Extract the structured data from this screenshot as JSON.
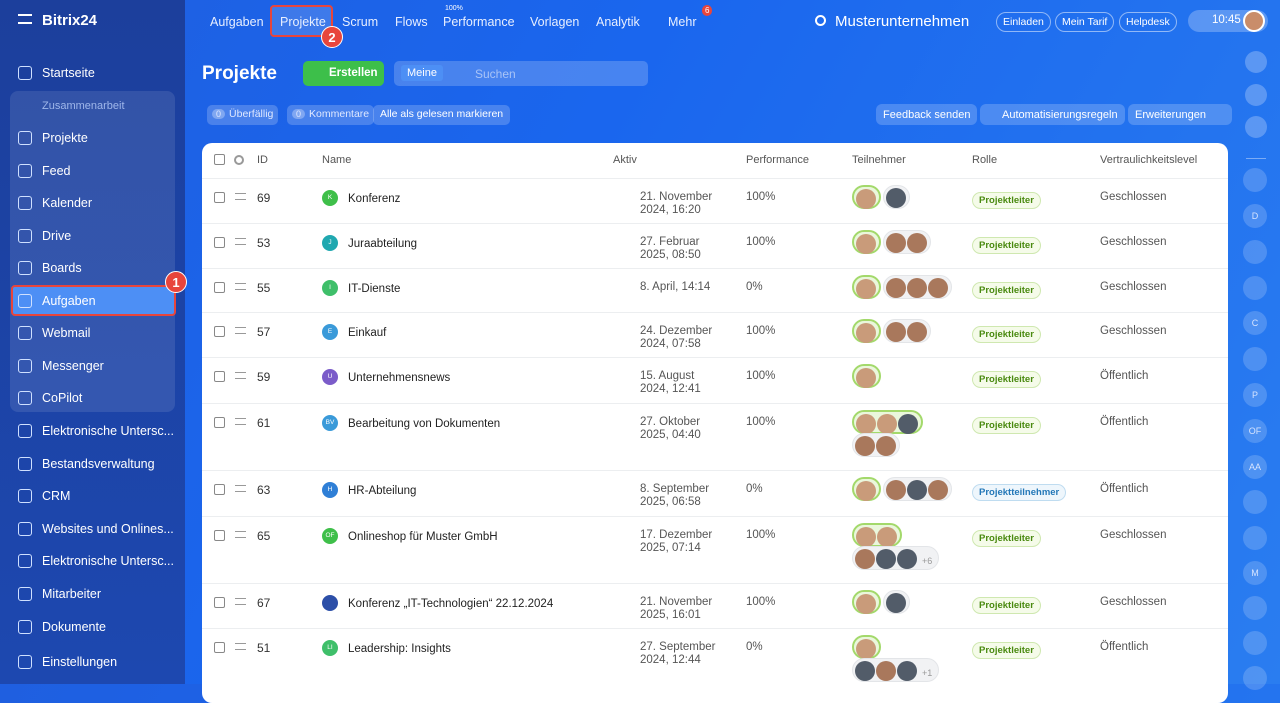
{
  "sidebar": {
    "logo": "Bitrix24",
    "items": [
      "Startseite"
    ],
    "group": {
      "title": "Zusammenarbeit",
      "items": [
        "Projekte",
        "Feed",
        "Kalender",
        "Drive",
        "Boards",
        "Aufgaben",
        "Webmail",
        "Messenger",
        "CoPilot"
      ]
    },
    "more_items": [
      "Elektronische Untersc...",
      "Bestandsverwaltung",
      "CRM",
      "Websites und Onlines...",
      "Elektronische Untersc...",
      "Mitarbeiter",
      "Dokumente",
      "Einstellungen"
    ]
  },
  "callouts": [
    "1",
    "2"
  ],
  "topnav": {
    "items": [
      "Aufgaben",
      "Projekte",
      "Scrum",
      "Flows",
      "Performance",
      "Vorlagen",
      "Analytik",
      "Mehr"
    ],
    "performance_badge": "100%",
    "mehr_badge": "6",
    "company": "Musterunternehmen",
    "buttons": [
      "Einladen",
      "Mein Tarif",
      "Helpdesk"
    ],
    "time": "10:45"
  },
  "header": {
    "title": "Projekte",
    "create": "Erstellen",
    "filter_tag": "Meine",
    "search_placeholder": "Suchen"
  },
  "toolbar": {
    "counters": [
      {
        "count": "0",
        "label": "Überfällig"
      },
      {
        "count": "0",
        "label": "Kommentare"
      }
    ],
    "mark_read": "Alle als gelesen markieren",
    "buttons": [
      "Feedback senden",
      "Automatisierungsregeln",
      "Erweiterungen"
    ]
  },
  "rail": {
    "letters": [
      "D",
      "C",
      "P",
      "OF",
      "AA",
      "M"
    ]
  },
  "table": {
    "columns": [
      "ID",
      "Name",
      "Aktiv",
      "Performance",
      "Teilnehmer",
      "Rolle",
      "Vertraulichkeitslevel"
    ],
    "rows": [
      {
        "id": "69",
        "icon": "K",
        "icon_color": "#3fbf4a",
        "name": "Konferenz",
        "aktiv": [
          "21. November",
          "2024, 16:20"
        ],
        "performance": "100%",
        "role": "Projektleiter",
        "level": "Geschlossen"
      },
      {
        "id": "53",
        "icon": "J",
        "icon_color": "#20a8b0",
        "name": "Juraabteilung",
        "aktiv": [
          "27. Februar",
          "2025, 08:50"
        ],
        "performance": "100%",
        "role": "Projektleiter",
        "level": "Geschlossen"
      },
      {
        "id": "55",
        "icon": "I",
        "icon_color": "#3fbf6a",
        "name": "IT-Dienste",
        "aktiv": [
          "8. April, 14:14"
        ],
        "performance": "0%",
        "role": "Projektleiter",
        "level": "Geschlossen"
      },
      {
        "id": "57",
        "icon": "E",
        "icon_color": "#3a9ad9",
        "name": "Einkauf",
        "aktiv": [
          "24. Dezember",
          "2024, 07:58"
        ],
        "performance": "100%",
        "role": "Projektleiter",
        "level": "Geschlossen"
      },
      {
        "id": "59",
        "icon": "U",
        "icon_color": "#7b5cc9",
        "name": "Unternehmensnews",
        "aktiv": [
          "15. August",
          "2024, 12:41"
        ],
        "performance": "100%",
        "role": "Projektleiter",
        "level": "Öffentlich"
      },
      {
        "id": "61",
        "icon": "BV",
        "icon_color": "#3a9ad9",
        "name": "Bearbeitung von Dokumenten",
        "aktiv": [
          "27. Oktober",
          "2025, 04:40"
        ],
        "performance": "100%",
        "role": "Projektleiter",
        "level": "Öffentlich"
      },
      {
        "id": "63",
        "icon": "H",
        "icon_color": "#2f7fd6",
        "name": "HR-Abteilung",
        "aktiv": [
          "8. September",
          "2025, 06:58"
        ],
        "performance": "0%",
        "role": "Projektteilnehmer",
        "level": "Öffentlich"
      },
      {
        "id": "65",
        "icon": "OF",
        "icon_color": "#3fbf4a",
        "name": "Onlineshop für Muster GmbH",
        "aktiv": [
          "17. Dezember",
          "2025, 07:14"
        ],
        "performance": "100%",
        "more": "+6",
        "role": "Projektleiter",
        "level": "Geschlossen"
      },
      {
        "id": "67",
        "icon": "",
        "icon_color": "#2c4fa8",
        "name": "Konferenz „IT-Technologien“ 22.12.2024",
        "aktiv": [
          "21. November",
          "2025, 16:01"
        ],
        "performance": "100%",
        "role": "Projektleiter",
        "level": "Geschlossen"
      },
      {
        "id": "51",
        "icon": "LI",
        "icon_color": "#3fbf6a",
        "name": "Leadership: Insights",
        "aktiv": [
          "27. September",
          "2024, 12:44"
        ],
        "performance": "0%",
        "more": "+1",
        "role": "Projektleiter",
        "level": "Öffentlich"
      }
    ]
  }
}
